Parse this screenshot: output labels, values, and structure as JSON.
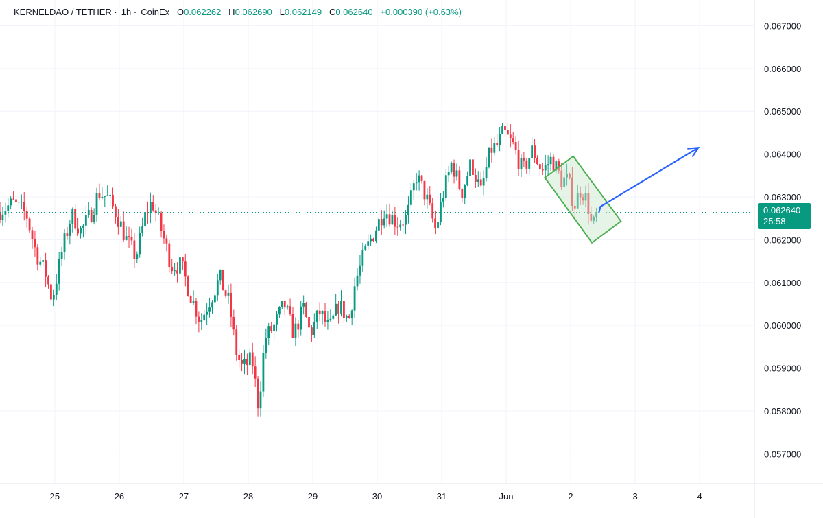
{
  "legend": {
    "symbol": "KERNELDAO / TETHER",
    "interval": "1h",
    "exchange": "CoinEx",
    "o_label": "O",
    "o_value": "0.062262",
    "h_label": "H",
    "h_value": "0.062690",
    "l_label": "L",
    "l_value": "0.062149",
    "c_label": "C",
    "c_value": "0.062640",
    "change": "+0.000390 (+0.63%)"
  },
  "price_tag": {
    "price": "0.062640",
    "countdown": "25:58"
  },
  "colors": {
    "up": "#089981",
    "down": "#f23645",
    "grid": "#f0f3fa",
    "arrow": "#2962ff",
    "channel_fill": "#c8e6c9",
    "channel_stroke": "#4caf50"
  },
  "chart_data": {
    "type": "candlestick",
    "title": "",
    "xlabel": "",
    "ylabel": "",
    "ylim": [
      0.0563,
      0.0676
    ],
    "y_ticks": [
      "0.067000",
      "0.066000",
      "0.065000",
      "0.064000",
      "0.063000",
      "0.062000",
      "0.061000",
      "0.060000",
      "0.059000",
      "0.058000",
      "0.057000"
    ],
    "x_ticks": [
      {
        "label": "25",
        "day": 25
      },
      {
        "label": "26",
        "day": 26
      },
      {
        "label": "27",
        "day": 27
      },
      {
        "label": "28",
        "day": 28
      },
      {
        "label": "29",
        "day": 29
      },
      {
        "label": "30",
        "day": 30
      },
      {
        "label": "31",
        "day": 31
      },
      {
        "label": "Jun",
        "day": 32
      },
      {
        "label": "2",
        "day": 33
      },
      {
        "label": "3",
        "day": 34
      },
      {
        "label": "4",
        "day": 35
      }
    ],
    "x_range_days": [
      24.15,
      35.85
    ],
    "last_price": 0.06264,
    "ohlc_anchors": [
      [
        24.15,
        0.06265
      ],
      [
        24.4,
        0.06285
      ],
      [
        24.6,
        0.0626
      ],
      [
        24.75,
        0.0617
      ],
      [
        24.9,
        0.0612
      ],
      [
        25.0,
        0.0606
      ],
      [
        25.15,
        0.0617
      ],
      [
        25.3,
        0.0626
      ],
      [
        25.45,
        0.0622
      ],
      [
        25.6,
        0.0626
      ],
      [
        25.72,
        0.0631
      ],
      [
        25.85,
        0.063
      ],
      [
        26.0,
        0.0626
      ],
      [
        26.15,
        0.062
      ],
      [
        26.3,
        0.0616
      ],
      [
        26.45,
        0.0626
      ],
      [
        26.55,
        0.0629
      ],
      [
        26.7,
        0.0622
      ],
      [
        26.85,
        0.0614
      ],
      [
        27.0,
        0.0614
      ],
      [
        27.15,
        0.0607
      ],
      [
        27.3,
        0.0601
      ],
      [
        27.45,
        0.0606
      ],
      [
        27.6,
        0.0611
      ],
      [
        27.75,
        0.0605
      ],
      [
        27.85,
        0.0594
      ],
      [
        27.95,
        0.059
      ],
      [
        28.1,
        0.0592
      ],
      [
        28.2,
        0.0581
      ],
      [
        28.3,
        0.0597
      ],
      [
        28.45,
        0.06
      ],
      [
        28.6,
        0.0605
      ],
      [
        28.75,
        0.0598
      ],
      [
        28.9,
        0.0604
      ],
      [
        29.0,
        0.0598
      ],
      [
        29.15,
        0.0603
      ],
      [
        29.3,
        0.0599
      ],
      [
        29.45,
        0.0605
      ],
      [
        29.6,
        0.0601
      ],
      [
        29.7,
        0.061
      ],
      [
        29.85,
        0.0617
      ],
      [
        30.0,
        0.0622
      ],
      [
        30.15,
        0.0627
      ],
      [
        30.35,
        0.0624
      ],
      [
        30.5,
        0.0625
      ],
      [
        30.65,
        0.0635
      ],
      [
        30.8,
        0.063
      ],
      [
        30.95,
        0.0622
      ],
      [
        31.05,
        0.063
      ],
      [
        31.2,
        0.0638
      ],
      [
        31.35,
        0.0631
      ],
      [
        31.5,
        0.0638
      ],
      [
        31.65,
        0.0631
      ],
      [
        31.8,
        0.0641
      ],
      [
        31.9,
        0.0642
      ],
      [
        32.0,
        0.0645
      ],
      [
        32.15,
        0.0642
      ],
      [
        32.3,
        0.0636
      ],
      [
        32.45,
        0.0641
      ],
      [
        32.6,
        0.0636
      ],
      [
        32.75,
        0.0639
      ],
      [
        32.9,
        0.0634
      ],
      [
        33.0,
        0.0634
      ],
      [
        33.1,
        0.0628
      ],
      [
        33.2,
        0.0632
      ],
      [
        33.3,
        0.0629
      ],
      [
        33.38,
        0.0622
      ],
      [
        33.44,
        0.06264
      ]
    ],
    "drawings": {
      "channel": [
        [
          32.6,
          0.06345
        ],
        [
          33.04,
          0.06395
        ],
        [
          33.78,
          0.06243
        ],
        [
          33.33,
          0.06193
        ]
      ],
      "arrow": [
        [
          33.44,
          0.06264
        ],
        [
          33.46,
          0.06277
        ],
        [
          34.98,
          0.06415
        ]
      ]
    }
  }
}
